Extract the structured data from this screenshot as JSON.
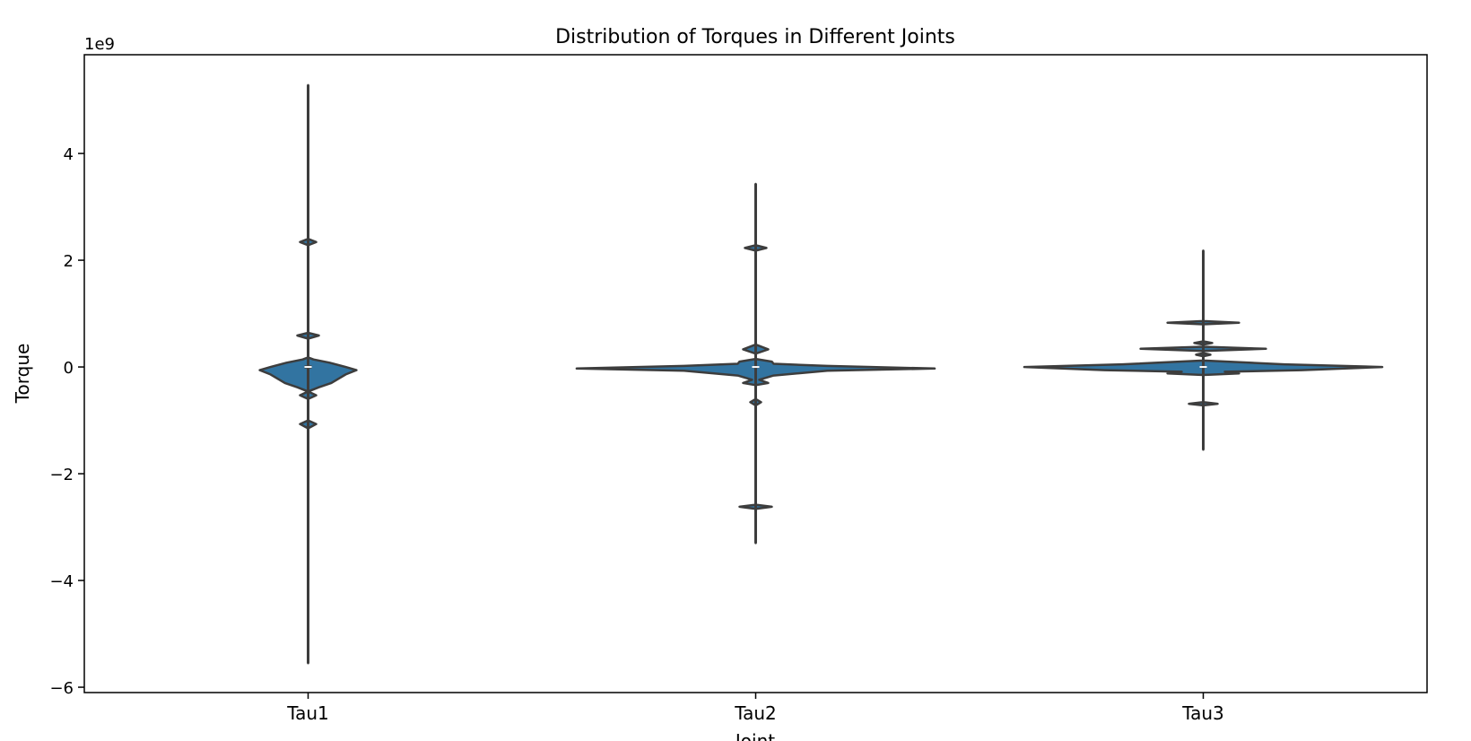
{
  "chart_data": {
    "type": "violin",
    "title": "Distribution of Torques in Different Joints",
    "xlabel": "Joint",
    "ylabel": "Torque",
    "y_offset_label": "1e9",
    "ylim": [
      -6.1,
      5.85
    ],
    "yticks": [
      {
        "value": -6,
        "label": "−6"
      },
      {
        "value": -4,
        "label": "−4"
      },
      {
        "value": -2,
        "label": "−2"
      },
      {
        "value": 0,
        "label": "0"
      },
      {
        "value": 2,
        "label": "2"
      },
      {
        "value": 4,
        "label": "4"
      }
    ],
    "categories": [
      "Tau1",
      "Tau2",
      "Tau3"
    ],
    "series": [
      {
        "category": "Tau1",
        "min": -5.55,
        "max": 5.28,
        "q1": -0.03,
        "q3": 0.03,
        "median": 0.0,
        "profile": [
          [
            -5.55,
            0.0
          ],
          [
            -1.15,
            0.0
          ],
          [
            -1.07,
            0.045
          ],
          [
            -1.0,
            0.0
          ],
          [
            -0.6,
            0.0
          ],
          [
            -0.53,
            0.045
          ],
          [
            -0.46,
            0.0
          ],
          [
            -0.38,
            0.06
          ],
          [
            -0.3,
            0.13
          ],
          [
            -0.14,
            0.21
          ],
          [
            -0.06,
            0.27
          ],
          [
            0.0,
            0.21
          ],
          [
            0.08,
            0.12
          ],
          [
            0.14,
            0.03
          ],
          [
            0.18,
            0.0
          ],
          [
            0.53,
            0.0
          ],
          [
            0.59,
            0.06
          ],
          [
            0.64,
            0.0
          ],
          [
            2.28,
            0.0
          ],
          [
            2.34,
            0.045
          ],
          [
            2.4,
            0.0
          ],
          [
            5.28,
            0.0
          ]
        ]
      },
      {
        "category": "Tau2",
        "min": -3.3,
        "max": 3.43,
        "q1": -0.02,
        "q3": 0.02,
        "median": 0.0,
        "profile": [
          [
            -3.3,
            0.0
          ],
          [
            -2.66,
            0.0
          ],
          [
            -2.62,
            0.09
          ],
          [
            -2.58,
            0.0
          ],
          [
            -0.72,
            0.0
          ],
          [
            -0.66,
            0.03
          ],
          [
            -0.6,
            0.0
          ],
          [
            -0.34,
            0.0
          ],
          [
            -0.3,
            0.07
          ],
          [
            -0.24,
            0.02
          ],
          [
            -0.16,
            0.1
          ],
          [
            -0.07,
            0.4
          ],
          [
            -0.03,
            1.0
          ],
          [
            0.02,
            0.4
          ],
          [
            0.06,
            0.1
          ],
          [
            0.1,
            0.09
          ],
          [
            0.15,
            0.0
          ],
          [
            0.25,
            0.0
          ],
          [
            0.33,
            0.07
          ],
          [
            0.42,
            0.0
          ],
          [
            2.18,
            0.0
          ],
          [
            2.23,
            0.06
          ],
          [
            2.28,
            0.0
          ],
          [
            3.43,
            0.0
          ]
        ]
      },
      {
        "category": "Tau3",
        "min": -1.55,
        "max": 2.18,
        "q1": -0.02,
        "q3": 0.02,
        "median": 0.0,
        "profile": [
          [
            -1.55,
            0.0
          ],
          [
            -0.72,
            0.0
          ],
          [
            -0.69,
            0.08
          ],
          [
            -0.66,
            0.0
          ],
          [
            -0.15,
            0.0
          ],
          [
            -0.12,
            0.2
          ],
          [
            -0.09,
            0.12
          ],
          [
            -0.06,
            0.55
          ],
          [
            0.0,
            1.0
          ],
          [
            0.05,
            0.45
          ],
          [
            0.12,
            0.0
          ],
          [
            0.2,
            0.0
          ],
          [
            0.23,
            0.04
          ],
          [
            0.26,
            0.0
          ],
          [
            0.3,
            0.0
          ],
          [
            0.34,
            0.35
          ],
          [
            0.38,
            0.0
          ],
          [
            0.42,
            0.0
          ],
          [
            0.45,
            0.05
          ],
          [
            0.48,
            0.0
          ],
          [
            0.8,
            0.0
          ],
          [
            0.83,
            0.2
          ],
          [
            0.86,
            0.0
          ],
          [
            2.18,
            0.0
          ]
        ]
      }
    ],
    "colors": {
      "fill": "#3274a1",
      "edge": "#3d3d3d",
      "median": "#ffffff"
    },
    "grid": false,
    "legend": "none"
  }
}
